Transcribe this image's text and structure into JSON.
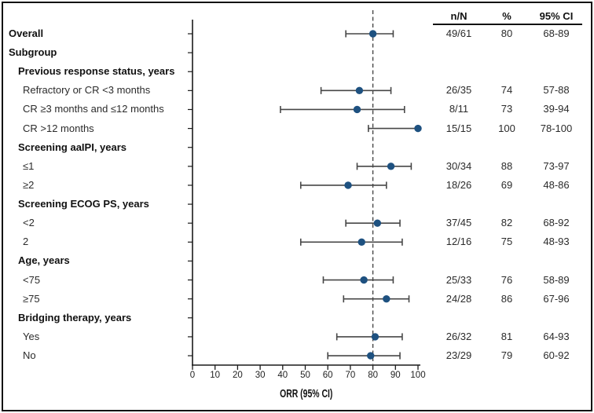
{
  "table": {
    "columns": [
      "n/N",
      "%",
      "95% CI"
    ]
  },
  "chart_data": {
    "type": "scatter",
    "variant": "forest-plot",
    "title": "",
    "xlabel": "ORR (95% CI)",
    "ylabel": "",
    "xlim": [
      0,
      100
    ],
    "x_ticks": [
      0,
      10,
      20,
      30,
      40,
      50,
      60,
      70,
      80,
      90,
      100
    ],
    "grid": false,
    "reference_line": {
      "x": 80,
      "style": "dashed"
    },
    "colors": {
      "marker": "#1e5180",
      "error_bar": "#474747",
      "axis": "#1a1a1a",
      "reference": "#3d3d3d"
    },
    "rows": [
      {
        "label": "Overall",
        "style": "header",
        "indent": 0,
        "n_N": "49/61",
        "pct": "80",
        "ci": "68-89",
        "estimate": 80,
        "ci_low": 68,
        "ci_high": 89
      },
      {
        "label": "Subgroup",
        "style": "header",
        "indent": 0
      },
      {
        "label": "Previous response status, years",
        "style": "header",
        "indent": 1
      },
      {
        "label": "Refractory or CR <3 months",
        "style": "item",
        "indent": 2,
        "n_N": "26/35",
        "pct": "74",
        "ci": "57-88",
        "estimate": 74,
        "ci_low": 57,
        "ci_high": 88
      },
      {
        "label": "CR ≥3 months and ≤12 months",
        "style": "item",
        "indent": 2,
        "n_N": "8/11",
        "pct": "73",
        "ci": "39-94",
        "estimate": 73,
        "ci_low": 39,
        "ci_high": 94
      },
      {
        "label": "CR >12 months",
        "style": "item",
        "indent": 2,
        "n_N": "15/15",
        "pct": "100",
        "ci": "78-100",
        "estimate": 100,
        "ci_low": 78,
        "ci_high": 100
      },
      {
        "label": "Screening aaIPI, years",
        "style": "header",
        "indent": 1
      },
      {
        "label": "≤1",
        "style": "item",
        "indent": 2,
        "n_N": "30/34",
        "pct": "88",
        "ci": "73-97",
        "estimate": 88,
        "ci_low": 73,
        "ci_high": 97
      },
      {
        "label": "≥2",
        "style": "item",
        "indent": 2,
        "n_N": "18/26",
        "pct": "69",
        "ci": "48-86",
        "estimate": 69,
        "ci_low": 48,
        "ci_high": 86
      },
      {
        "label": "Screening ECOG PS, years",
        "style": "header",
        "indent": 1
      },
      {
        "label": "<2",
        "style": "item",
        "indent": 2,
        "n_N": "37/45",
        "pct": "82",
        "ci": "68-92",
        "estimate": 82,
        "ci_low": 68,
        "ci_high": 92
      },
      {
        "label": "2",
        "style": "item",
        "indent": 2,
        "n_N": "12/16",
        "pct": "75",
        "ci": "48-93",
        "estimate": 75,
        "ci_low": 48,
        "ci_high": 93
      },
      {
        "label": "Age, years",
        "style": "header",
        "indent": 1
      },
      {
        "label": "<75",
        "style": "item",
        "indent": 2,
        "n_N": "25/33",
        "pct": "76",
        "ci": "58-89",
        "estimate": 76,
        "ci_low": 58,
        "ci_high": 89
      },
      {
        "label": "≥75",
        "style": "item",
        "indent": 2,
        "n_N": "24/28",
        "pct": "86",
        "ci": "67-96",
        "estimate": 86,
        "ci_low": 67,
        "ci_high": 96
      },
      {
        "label": "Bridging therapy, years",
        "style": "header",
        "indent": 1
      },
      {
        "label": "Yes",
        "style": "item",
        "indent": 2,
        "n_N": "26/32",
        "pct": "81",
        "ci": "64-93",
        "estimate": 81,
        "ci_low": 64,
        "ci_high": 93
      },
      {
        "label": "No",
        "style": "item",
        "indent": 2,
        "n_N": "23/29",
        "pct": "79",
        "ci": "60-92",
        "estimate": 79,
        "ci_low": 60,
        "ci_high": 92
      }
    ]
  }
}
